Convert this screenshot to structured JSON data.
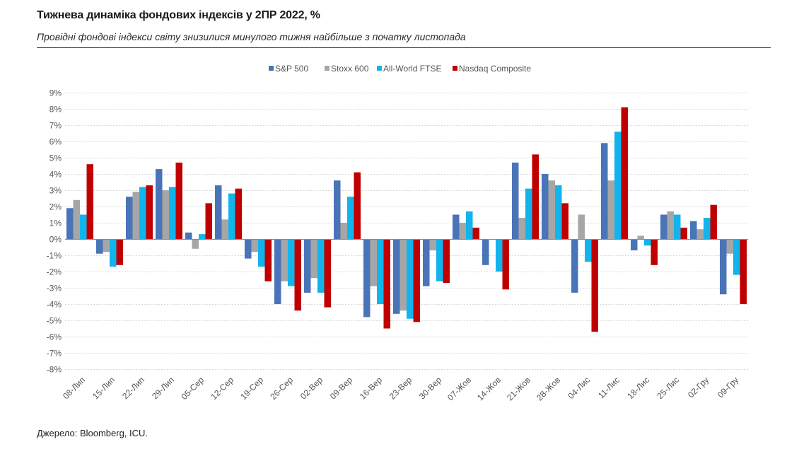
{
  "header": {
    "title": "Тижнева динаміка фондових індексів у 2ПР 2022, %",
    "subtitle": "Провідні фондові індекси світу знизилися минулого тижня найбільше з початку листопада"
  },
  "footer": {
    "source": "Джерело: Bloomberg, ICU."
  },
  "chart_data": {
    "type": "bar",
    "title": "Тижнева динаміка фондових індексів у 2ПР 2022, %",
    "xlabel": "",
    "ylabel": "",
    "ylim": [
      -8,
      9
    ],
    "yticks": [
      9,
      8,
      7,
      6,
      5,
      4,
      3,
      2,
      1,
      0,
      -1,
      -2,
      -3,
      -4,
      -5,
      -6,
      -7,
      -8
    ],
    "ytick_labels": [
      "9%",
      "8%",
      "7%",
      "6%",
      "5%",
      "4%",
      "3%",
      "2%",
      "1%",
      "0%",
      "-1%",
      "-2%",
      "-3%",
      "-4%",
      "-5%",
      "-6%",
      "-7%",
      "-8%"
    ],
    "grid": true,
    "legend_position": "top-center",
    "categories": [
      "08-Лип",
      "15-Лип",
      "22-Лип",
      "29-Лип",
      "05-Сер",
      "12-Сер",
      "19-Сер",
      "26-Сер",
      "02-Вер",
      "09-Вер",
      "16-Вер",
      "23-Вер",
      "30-Вер",
      "07-Жов",
      "14-Жов",
      "21-Жов",
      "28-Жов",
      "04-Лис",
      "11-Лис",
      "18-Лис",
      "25-Лис",
      "02-Гру",
      "09-Гру"
    ],
    "series": [
      {
        "name": "S&P 500",
        "color": "#4a74b8",
        "values": [
          1.9,
          -0.9,
          2.6,
          4.3,
          0.4,
          3.3,
          -1.2,
          -4.0,
          -3.3,
          3.6,
          -4.8,
          -4.6,
          -2.9,
          1.5,
          -1.6,
          4.7,
          4.0,
          -3.3,
          5.9,
          -0.7,
          1.5,
          1.1,
          -3.4
        ]
      },
      {
        "name": "Stoxx 600",
        "color": "#a6a6a6",
        "values": [
          2.4,
          -0.8,
          2.9,
          3.0,
          -0.6,
          1.2,
          -0.8,
          -2.6,
          -2.4,
          1.0,
          -2.9,
          -4.4,
          -0.7,
          1.0,
          0.0,
          1.3,
          3.6,
          1.5,
          3.6,
          0.2,
          1.7,
          0.6,
          -0.9
        ]
      },
      {
        "name": "All-World FTSE",
        "color": "#12b4ec",
        "values": [
          1.5,
          -1.7,
          3.2,
          3.2,
          0.3,
          2.8,
          -1.7,
          -2.9,
          -3.3,
          2.6,
          -4.0,
          -4.9,
          -2.6,
          1.7,
          -2.0,
          3.1,
          3.3,
          -1.4,
          6.6,
          -0.4,
          1.5,
          1.3,
          -2.2
        ]
      },
      {
        "name": "Nasdaq Composite",
        "color": "#c00000",
        "values": [
          4.6,
          -1.6,
          3.3,
          4.7,
          2.2,
          3.1,
          -2.6,
          -4.4,
          -4.2,
          4.1,
          -5.5,
          -5.1,
          -2.7,
          0.7,
          -3.1,
          5.2,
          2.2,
          -5.7,
          8.1,
          -1.6,
          0.7,
          2.1,
          -4.0
        ]
      }
    ]
  }
}
